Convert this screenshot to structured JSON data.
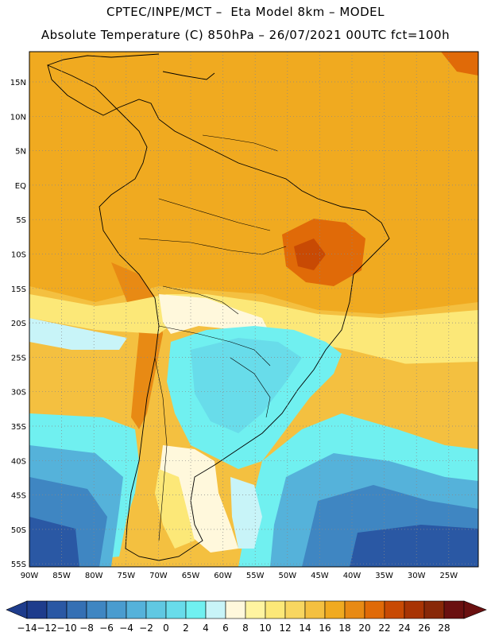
{
  "header": {
    "line1": "CPTEC/INPE/MCT –  Eta Model 8km – MODEL",
    "line2": "Absolute Temperature (C) 850hPa – 26/07/2021 00UTC fct=100h"
  },
  "lat_ticks": [
    "15N",
    "10N",
    "5N",
    "EQ",
    "5S",
    "10S",
    "15S",
    "20S",
    "25S",
    "30S",
    "35S",
    "40S",
    "45S",
    "50S",
    "55S"
  ],
  "lon_ticks": [
    "90W",
    "85W",
    "80W",
    "75W",
    "70W",
    "65W",
    "60W",
    "55W",
    "50W",
    "45W",
    "40W",
    "35W",
    "30W",
    "25W"
  ],
  "colorbar": {
    "labels": [
      "-14",
      "-12",
      "-10",
      "-8",
      "-6",
      "-4",
      "-2",
      "0",
      "2",
      "4",
      "6",
      "8",
      "10",
      "12",
      "14",
      "16",
      "18",
      "20",
      "22",
      "24",
      "26",
      "28"
    ],
    "colors": [
      "#1e3c8c",
      "#2a58a4",
      "#3570b4",
      "#3f86c2",
      "#4a9ccf",
      "#55b2da",
      "#60c8e2",
      "#68dcea",
      "#70f0f0",
      "#c8f4f8",
      "#fff8dc",
      "#fff4a0",
      "#fce878",
      "#f8d660",
      "#f4c040",
      "#f0aa20",
      "#e88a14",
      "#e06a08",
      "#c84a04",
      "#a83404",
      "#882808",
      "#6a1010"
    ]
  },
  "regions": {
    "ocean_south_label": "",
    "colors": {
      "warm_north": "#f0aa20",
      "very_warm": "#e06a08",
      "hot": "#c84a04",
      "mid_warm": "#f4c040",
      "pale_yellow": "#fce878",
      "cream": "#fff8dc",
      "light_cyan": "#c8f4f8",
      "cyan": "#70f0f0",
      "light_blue": "#55b2da",
      "blue": "#3f86c2",
      "deep_blue": "#2a58a4",
      "darkest": "#1e3c8c"
    }
  }
}
